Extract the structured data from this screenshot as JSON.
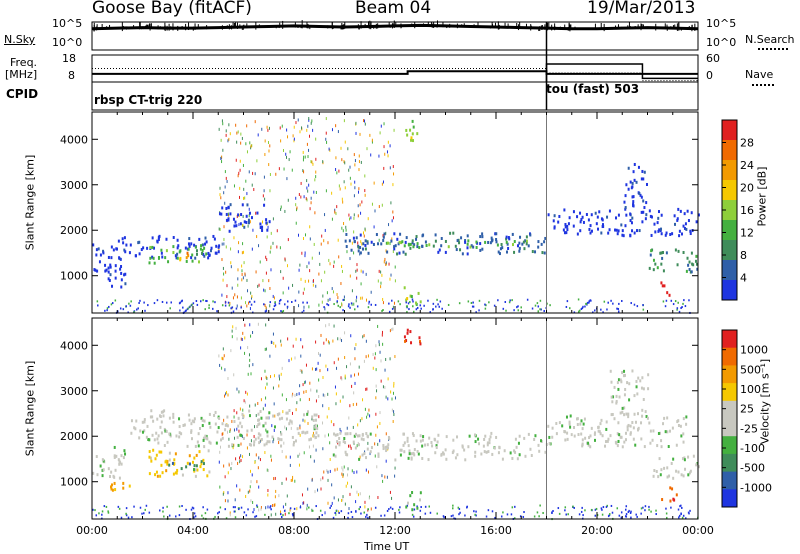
{
  "header": {
    "site": "Goose Bay (fitACF)",
    "beam": "Beam 04",
    "date": "19/Mar/2013"
  },
  "labels": {
    "nsky": "N.Sky",
    "freq": "Freq.",
    "mhz": "[MHz]",
    "cpid": "CPID",
    "nsearch": "N.Search",
    "nave": "Nave",
    "nsky_ticks": [
      "10^5",
      "10^0"
    ],
    "nsearch_ticks": [
      "10^5",
      "10^0"
    ],
    "freq_ticks": [
      "18",
      "8"
    ],
    "nave_ticks": [
      "60",
      "0"
    ],
    "cpid_1": "rbsp CT-trig 220",
    "cpid_2": "tou (fast) 503",
    "xlabel": "Time UT",
    "ylabel": "Slant Range [km]",
    "power_label": "Power [dB]",
    "velocity_label": "Velocity [m s⁻¹]"
  },
  "colors": {
    "power": [
      "#1f35e0",
      "#2f5fa8",
      "#3f8c5a",
      "#44b040",
      "#8ecf3a",
      "#f5c800",
      "#f39a00",
      "#f06a00",
      "#e02020"
    ],
    "velocity": [
      "#1f35e0",
      "#2f5fa8",
      "#3f8c5a",
      "#44b040",
      "#c8c8c0",
      "#c8c8c0",
      "#f5c800",
      "#f39a00",
      "#f06a00",
      "#e02020"
    ],
    "ground": "#c5c5bd"
  },
  "chart_data": [
    {
      "type": "line",
      "title": "",
      "series": [
        {
          "name": "N.Sky",
          "values": [
            3.8,
            3.9,
            4.0,
            3.9,
            3.9,
            4.0,
            4.1,
            4.2,
            4.3,
            4.2,
            4.1,
            4.2,
            4.3,
            4.4,
            4.3,
            4.2,
            4.1,
            4.0,
            3.9,
            3.8,
            3.8,
            3.9,
            4.0,
            3.9,
            3.8
          ]
        }
      ],
      "x": [
        0,
        1,
        2,
        3,
        4,
        5,
        6,
        7,
        8,
        9,
        10,
        11,
        12,
        13,
        14,
        15,
        16,
        17,
        18,
        19,
        20,
        21,
        22,
        23,
        24
      ],
      "ylim": [
        0,
        5
      ]
    },
    {
      "type": "line",
      "series": [
        {
          "name": "Freq.",
          "x": [
            0,
            12.5,
            12.5,
            18,
            18,
            24
          ],
          "values": [
            11,
            11,
            12,
            12,
            11,
            11
          ]
        },
        {
          "name": "Nave",
          "x": [
            18,
            18,
            21.8,
            21.8,
            24
          ],
          "values": [
            0,
            40,
            40,
            8,
            8
          ]
        }
      ],
      "xlim": [
        0,
        24
      ]
    },
    {
      "type": "heatmap",
      "ylabel": "Slant Range [km]",
      "xlabel": "Time UT",
      "xlim": [
        0,
        24
      ],
      "ylim": [
        180,
        4600
      ],
      "x_ticks": [
        "00:00",
        "04:00",
        "08:00",
        "12:00",
        "16:00",
        "20:00",
        "00:00"
      ],
      "y_ticks": [
        1000,
        2000,
        3000,
        4000
      ],
      "colorbar": {
        "label": "Power [dB]",
        "ticks": [
          4,
          8,
          12,
          16,
          20,
          24,
          28
        ]
      },
      "regions": [
        {
          "t": [
            0.0,
            1.3
          ],
          "r": [
            1000,
            1800
          ],
          "level": 0
        },
        {
          "t": [
            0.6,
            1.3
          ],
          "r": [
            750,
            1050
          ],
          "level": 0
        },
        {
          "t": [
            1.0,
            5.0
          ],
          "r": [
            1400,
            1900
          ],
          "level": 0
        },
        {
          "t": [
            2.2,
            4.5
          ],
          "r": [
            1300,
            1700
          ],
          "level": 3
        },
        {
          "t": [
            3.3,
            4.0
          ],
          "r": [
            1350,
            1550
          ],
          "level": 6
        },
        {
          "t": [
            5.0,
            7.0
          ],
          "r": [
            2000,
            2600
          ],
          "level": 0
        },
        {
          "t": [
            10.0,
            18.0
          ],
          "r": [
            1500,
            2000
          ],
          "level": 1
        },
        {
          "t": [
            11.5,
            17.5
          ],
          "r": [
            1650,
            1800
          ],
          "level": 3
        },
        {
          "t": [
            12.3,
            13.0
          ],
          "r": [
            4000,
            4450
          ],
          "level": 4
        },
        {
          "t": [
            12.3,
            13.0
          ],
          "r": [
            400,
            800
          ],
          "level": 4
        },
        {
          "t": [
            18.0,
            24.0
          ],
          "r": [
            1900,
            2500
          ],
          "level": 0
        },
        {
          "t": [
            21.0,
            22.0
          ],
          "r": [
            2500,
            3500
          ],
          "level": 0
        },
        {
          "t": [
            22.0,
            24.0
          ],
          "r": [
            1100,
            1600
          ],
          "level": 2
        },
        {
          "t": [
            22.5,
            23.0
          ],
          "r": [
            600,
            900
          ],
          "level": 8
        }
      ]
    },
    {
      "type": "heatmap",
      "ylabel": "Slant Range [km]",
      "xlabel": "Time UT",
      "xlim": [
        0,
        24
      ],
      "ylim": [
        180,
        4600
      ],
      "x_ticks": [
        "00:00",
        "04:00",
        "08:00",
        "12:00",
        "16:00",
        "20:00",
        "00:00"
      ],
      "y_ticks": [
        1000,
        2000,
        3000,
        4000
      ],
      "colorbar": {
        "label": "Velocity [m s⁻¹]",
        "ticks": [
          1000,
          500,
          100,
          25,
          -25,
          -100,
          -500,
          -1000
        ]
      },
      "regions": [
        {
          "t": [
            0.0,
            1.3
          ],
          "r": [
            1100,
            1800
          ],
          "level": 4
        },
        {
          "t": [
            0.6,
            1.5
          ],
          "r": [
            750,
            1050
          ],
          "level": 7
        },
        {
          "t": [
            2.2,
            4.7
          ],
          "r": [
            1150,
            1750
          ],
          "level": 6
        },
        {
          "t": [
            3.0,
            4.5
          ],
          "r": [
            1300,
            1500
          ],
          "level": 2
        },
        {
          "t": [
            1.5,
            9.0
          ],
          "r": [
            1800,
            2600
          ],
          "level": 4
        },
        {
          "t": [
            9.5,
            18.0
          ],
          "r": [
            1500,
            2100
          ],
          "level": 4
        },
        {
          "t": [
            12.3,
            13.0
          ],
          "r": [
            4000,
            4450
          ],
          "level": 9
        },
        {
          "t": [
            12.3,
            13.0
          ],
          "r": [
            400,
            800
          ],
          "level": 3
        },
        {
          "t": [
            18.0,
            23.5
          ],
          "r": [
            1800,
            2500
          ],
          "level": 4
        },
        {
          "t": [
            20.5,
            22.0
          ],
          "r": [
            2500,
            3500
          ],
          "level": 4
        },
        {
          "t": [
            22.2,
            24.0
          ],
          "r": [
            1100,
            1600
          ],
          "level": 4
        },
        {
          "t": [
            22.5,
            23.2
          ],
          "r": [
            600,
            900
          ],
          "level": 8
        }
      ]
    }
  ]
}
